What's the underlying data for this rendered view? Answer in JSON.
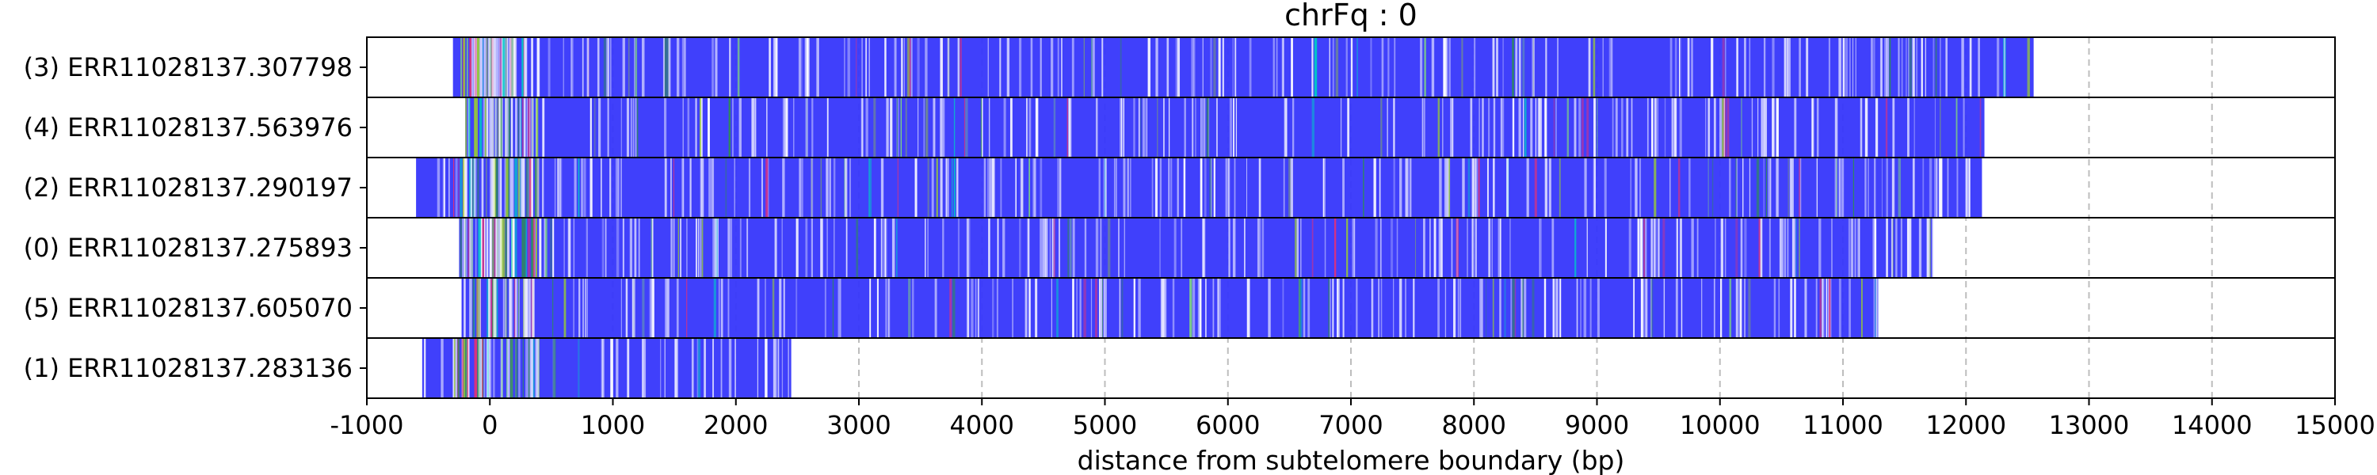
{
  "chart_data": {
    "type": "bar",
    "title": "chrFq : 0",
    "xlabel": "distance from subtelomere boundary (bp)",
    "ylabel": "",
    "xlim": [
      -1000,
      15000
    ],
    "x_ticks": [
      -1000,
      0,
      1000,
      2000,
      3000,
      4000,
      5000,
      6000,
      7000,
      8000,
      9000,
      10000,
      11000,
      12000,
      13000,
      14000,
      15000
    ],
    "grid": "vertical dashed",
    "legend": "none",
    "colors": {
      "bar": "#3636fb",
      "grid": "#bdbdbd",
      "axis": "#000000"
    },
    "rows": [
      {
        "label": "(3) ERR11028137.307798",
        "start": -300,
        "end": 12550
      },
      {
        "label": "(4) ERR11028137.563976",
        "start": -200,
        "end": 12150
      },
      {
        "label": "(2) ERR11028137.290197",
        "start": -600,
        "end": 12130
      },
      {
        "label": "(0) ERR11028137.275893",
        "start": -250,
        "end": 11730
      },
      {
        "label": "(5) ERR11028137.605070",
        "start": -230,
        "end": 11290
      },
      {
        "label": "(1) ERR11028137.283136",
        "start": -550,
        "end": 2450
      }
    ]
  }
}
